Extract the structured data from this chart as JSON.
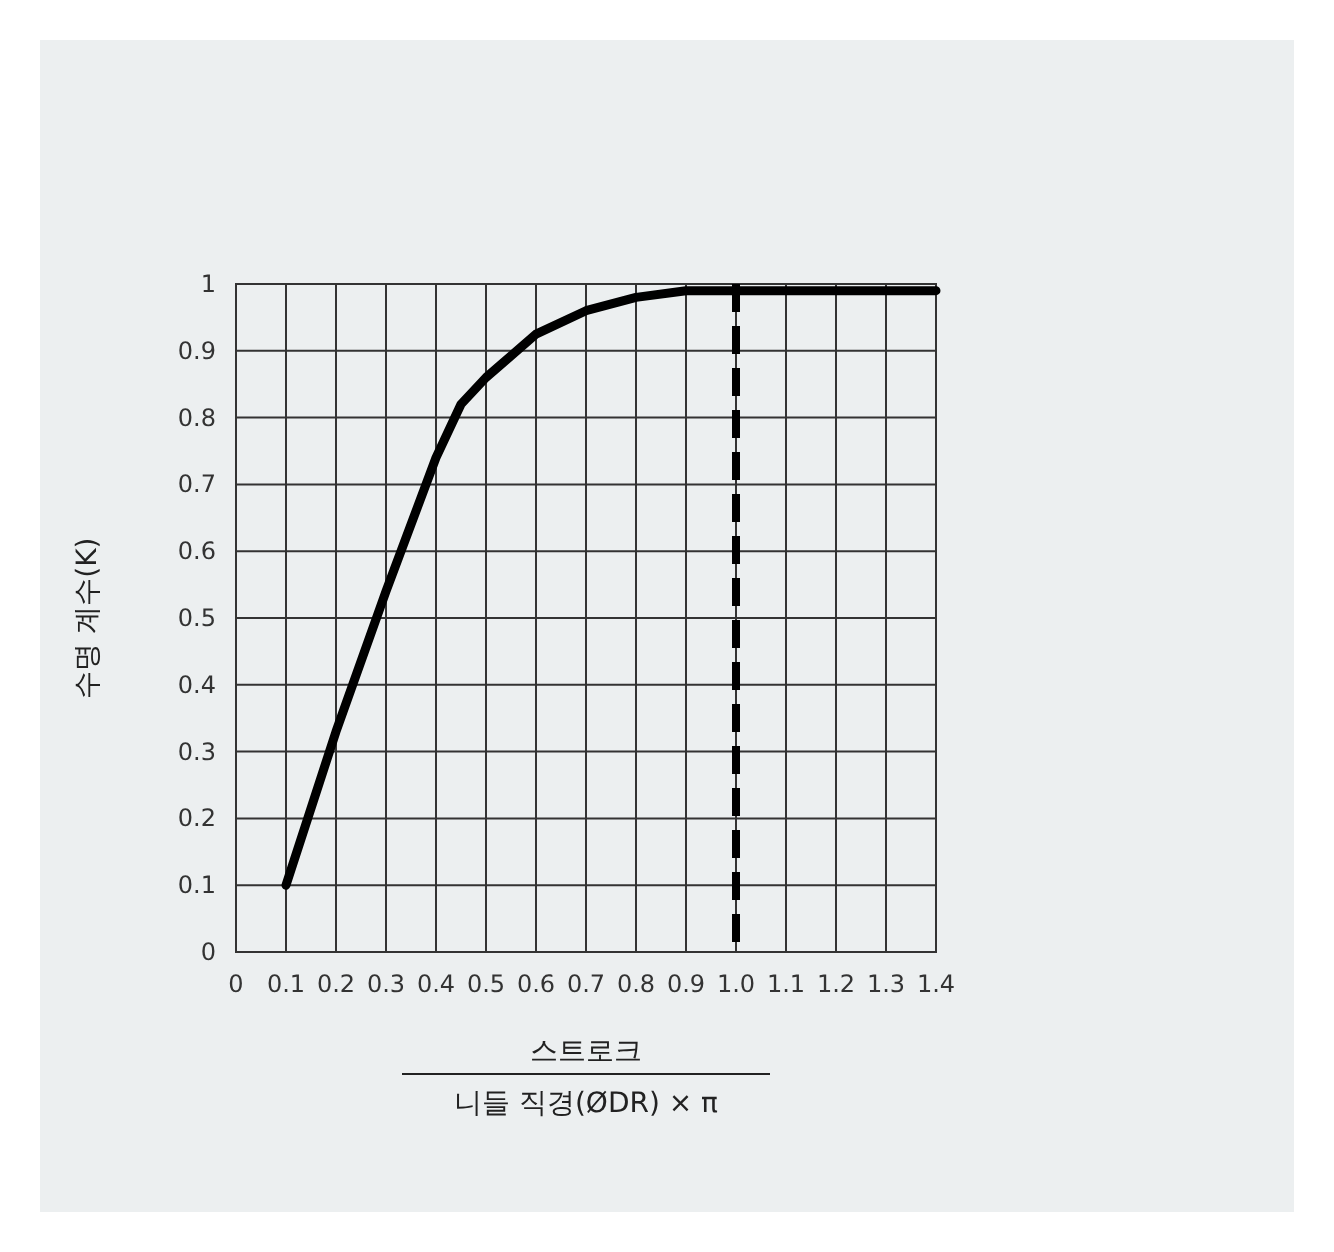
{
  "chart_data": {
    "type": "line",
    "xlabel": "스트로크",
    "ylabel": "수명 계수(K)",
    "annotations": [
      "니들 직경(ØDR) × π"
    ],
    "x": [
      0.1,
      0.2,
      0.3,
      0.4,
      0.45,
      0.5,
      0.6,
      0.7,
      0.8,
      0.9,
      1.0,
      1.4
    ],
    "series": [
      {
        "color": "#000000",
        "values": [
          0.1,
          0.33,
          0.54,
          0.74,
          0.82,
          0.86,
          0.925,
          0.96,
          0.98,
          0.99,
          0.99,
          0.99
        ]
      }
    ],
    "xlim": [
      0,
      1.4
    ],
    "ylim": [
      0,
      1
    ],
    "xticks": [
      0,
      0.1,
      0.2,
      0.3,
      0.4,
      0.5,
      0.6,
      0.7,
      0.8,
      0.9,
      {
        "value": 1,
        "label": "1.0"
      },
      1.1,
      1.2,
      1.3,
      1.4
    ],
    "yticks": [
      0,
      0.1,
      0.2,
      0.3,
      0.4,
      0.5,
      0.6,
      0.7,
      0.8,
      0.9,
      1
    ],
    "grid": true,
    "ref_lines": [
      {
        "axis": "x",
        "value": 1,
        "color": "#000000",
        "line_style": "dashed"
      }
    ],
    "line_style": "solid",
    "marker": "none"
  }
}
